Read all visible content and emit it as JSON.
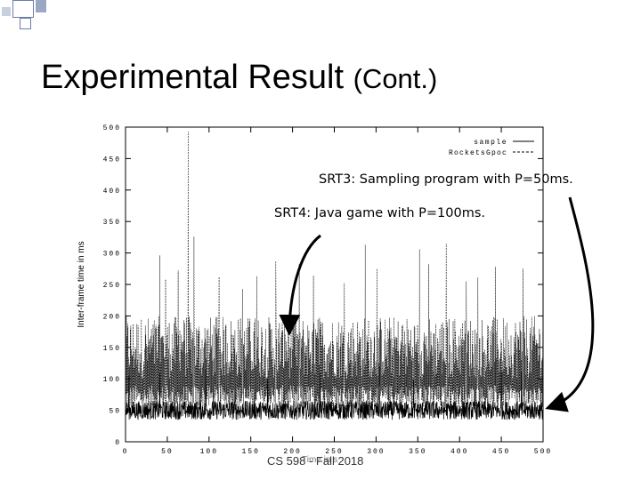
{
  "slide": {
    "title": "Experimental Result",
    "title_suffix": "(Cont.)",
    "footer": "CS 598 - Fall 2018",
    "footer_overlay": "Time in s",
    "annotation_srt3": "SRT3: Sampling program with P=50ms.",
    "annotation_srt4": "SRT4: Java game with P=100ms.",
    "accent_color": "#6a7fa8"
  },
  "chart_data": {
    "type": "line",
    "title": "",
    "xlabel": "Time in s",
    "ylabel": "Inter-frame time in ms",
    "xlim": [
      0,
      500
    ],
    "ylim": [
      0,
      500
    ],
    "xticks": [
      0,
      50,
      100,
      150,
      200,
      250,
      300,
      350,
      400,
      450,
      500
    ],
    "yticks": [
      0,
      50,
      100,
      150,
      200,
      250,
      300,
      350,
      400,
      450,
      500
    ],
    "legend_position": "top-right",
    "series": [
      {
        "name": "sample",
        "style": "solid",
        "summary": "clustered near 50 ms",
        "baseline": 50,
        "typical_range": [
          35,
          65
        ],
        "spikes": [
          [
            4,
            105
          ],
          [
            41,
            110
          ],
          [
            96,
            115
          ],
          [
            170,
            100
          ],
          [
            233,
            110
          ],
          [
            304,
            120
          ],
          [
            345,
            98
          ],
          [
            450,
            115
          ],
          [
            474,
            112
          ]
        ]
      },
      {
        "name": "RocketsGpoc",
        "style": "dashed",
        "summary": "oscillating 50-200 ms",
        "typical_range": [
          50,
          200
        ],
        "spikes": [
          [
            41,
            296
          ],
          [
            48,
            258
          ],
          [
            63,
            272
          ],
          [
            75,
            493
          ],
          [
            82,
            326
          ],
          [
            112,
            262
          ],
          [
            140,
            243
          ],
          [
            157,
            263
          ],
          [
            180,
            287
          ],
          [
            208,
            282
          ],
          [
            225,
            264
          ],
          [
            262,
            252
          ],
          [
            287,
            313
          ],
          [
            301,
            275
          ],
          [
            352,
            306
          ],
          [
            363,
            282
          ],
          [
            384,
            315
          ],
          [
            408,
            255
          ],
          [
            422,
            261
          ],
          [
            443,
            278
          ],
          [
            476,
            275
          ]
        ]
      }
    ]
  }
}
